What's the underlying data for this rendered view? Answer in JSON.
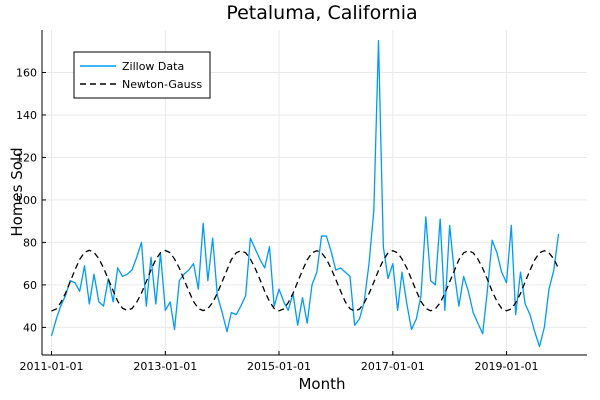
{
  "chart_data": {
    "type": "line",
    "title": "Petaluma, California",
    "xlabel": "Month",
    "ylabel": "Homes Sold",
    "x_ticks": [
      "2011-01-01",
      "2013-01-01",
      "2015-01-01",
      "2017-01-01",
      "2019-01-01"
    ],
    "y_ticks": [
      40,
      60,
      80,
      100,
      120,
      140,
      160
    ],
    "xlim": [
      "2010-11-01",
      "2020-06-01"
    ],
    "ylim": [
      27,
      180
    ],
    "grid": true,
    "legend_position": "top-left",
    "series": [
      {
        "name": "Zillow Data",
        "color": "#009af9",
        "dash": "solid",
        "x": [
          "2011-01-01",
          "2011-02-01",
          "2011-03-01",
          "2011-04-01",
          "2011-05-01",
          "2011-06-01",
          "2011-07-01",
          "2011-08-01",
          "2011-09-01",
          "2011-10-01",
          "2011-11-01",
          "2011-12-01",
          "2012-01-01",
          "2012-02-01",
          "2012-03-01",
          "2012-04-01",
          "2012-05-01",
          "2012-06-01",
          "2012-07-01",
          "2012-08-01",
          "2012-09-01",
          "2012-10-01",
          "2012-11-01",
          "2012-12-01",
          "2013-01-01",
          "2013-02-01",
          "2013-03-01",
          "2013-04-01",
          "2013-05-01",
          "2013-06-01",
          "2013-07-01",
          "2013-08-01",
          "2013-09-01",
          "2013-10-01",
          "2013-11-01",
          "2013-12-01",
          "2014-01-01",
          "2014-02-01",
          "2014-03-01",
          "2014-04-01",
          "2014-05-01",
          "2014-06-01",
          "2014-07-01",
          "2014-08-01",
          "2014-09-01",
          "2014-10-01",
          "2014-11-01",
          "2014-12-01",
          "2015-01-01",
          "2015-02-01",
          "2015-03-01",
          "2015-04-01",
          "2015-05-01",
          "2015-06-01",
          "2015-07-01",
          "2015-08-01",
          "2015-09-01",
          "2015-10-01",
          "2015-11-01",
          "2015-12-01",
          "2016-01-01",
          "2016-02-01",
          "2016-03-01",
          "2016-04-01",
          "2016-05-01",
          "2016-06-01",
          "2016-07-01",
          "2016-08-01",
          "2016-09-01",
          "2016-10-01",
          "2016-11-01",
          "2016-12-01",
          "2017-01-01",
          "2017-02-01",
          "2017-03-01",
          "2017-04-01",
          "2017-05-01",
          "2017-06-01",
          "2017-07-01",
          "2017-08-01",
          "2017-09-01",
          "2017-10-01",
          "2017-11-01",
          "2017-12-01",
          "2018-01-01",
          "2018-02-01",
          "2018-03-01",
          "2018-04-01",
          "2018-05-01",
          "2018-06-01",
          "2018-07-01",
          "2018-08-01",
          "2018-09-01",
          "2018-10-01",
          "2018-11-01",
          "2018-12-01",
          "2019-01-01",
          "2019-02-01",
          "2019-03-01",
          "2019-04-01",
          "2019-05-01",
          "2019-06-01",
          "2019-07-01",
          "2019-08-01",
          "2019-09-01",
          "2019-10-01",
          "2019-11-01",
          "2019-12-01"
        ],
        "y": [
          36,
          44,
          50,
          55,
          62,
          61,
          57,
          69,
          51,
          65,
          52,
          50,
          63,
          52,
          68,
          64,
          65,
          67,
          73,
          80,
          50,
          73,
          51,
          75,
          48,
          52,
          39,
          62,
          65,
          67,
          70,
          58,
          89,
          62,
          82,
          55,
          47,
          38,
          47,
          46,
          50,
          55,
          82,
          77,
          72,
          68,
          78,
          50,
          58,
          52,
          48,
          56,
          41,
          54,
          42,
          60,
          66,
          83,
          83,
          76,
          67,
          68,
          66,
          64,
          41,
          44,
          52,
          70,
          95,
          175,
          78,
          63,
          70,
          48,
          66,
          51,
          39,
          44,
          55,
          92,
          62,
          60,
          91,
          48,
          88,
          65,
          50,
          64,
          57,
          47,
          42,
          37,
          58,
          81,
          75,
          66,
          61,
          88,
          46,
          66,
          51,
          46,
          38,
          31,
          40,
          58,
          67,
          84
        ]
      },
      {
        "name": "Newton-Gauss",
        "color": "#000000",
        "dash": "dashed",
        "x_start": "2011-01-01",
        "y": [
          47.7,
          48.7,
          51.6,
          56.1,
          61.5,
          67.1,
          72.0,
          75.3,
          76.3,
          75.3,
          72.4,
          68.0,
          62.7,
          57.2,
          52.3,
          49.0,
          48.0,
          48.9,
          51.8,
          56.2,
          61.6,
          67.1,
          72.0,
          75.2,
          76.2,
          75.2,
          72.2,
          67.9,
          62.5,
          57.1,
          52.2,
          48.9,
          47.9,
          48.8,
          51.7,
          56.1,
          61.5,
          67.0,
          71.9,
          75.1,
          76.1,
          75.1,
          72.2,
          67.8,
          62.5,
          57.0,
          52.2,
          48.9,
          47.8,
          48.7,
          51.6,
          56.0,
          61.4,
          66.9,
          71.8,
          75.1,
          76.1,
          75.1,
          72.2,
          67.8,
          62.5,
          57.0,
          52.1,
          48.8,
          47.7,
          48.6,
          51.5,
          55.9,
          61.3,
          66.8,
          71.7,
          75.0,
          76.1,
          75.1,
          72.2,
          67.9,
          62.6,
          57.1,
          52.2,
          48.9,
          47.8,
          48.7,
          51.6,
          56.0,
          61.4,
          66.9,
          71.8,
          75.1,
          76.1,
          75.1,
          72.2,
          67.8,
          62.5,
          57.0,
          52.2,
          48.9,
          47.8,
          48.7,
          51.6,
          56.0,
          61.4,
          66.9,
          71.8,
          75.1,
          76.1,
          75.1,
          72.2,
          67.8
        ]
      }
    ]
  }
}
